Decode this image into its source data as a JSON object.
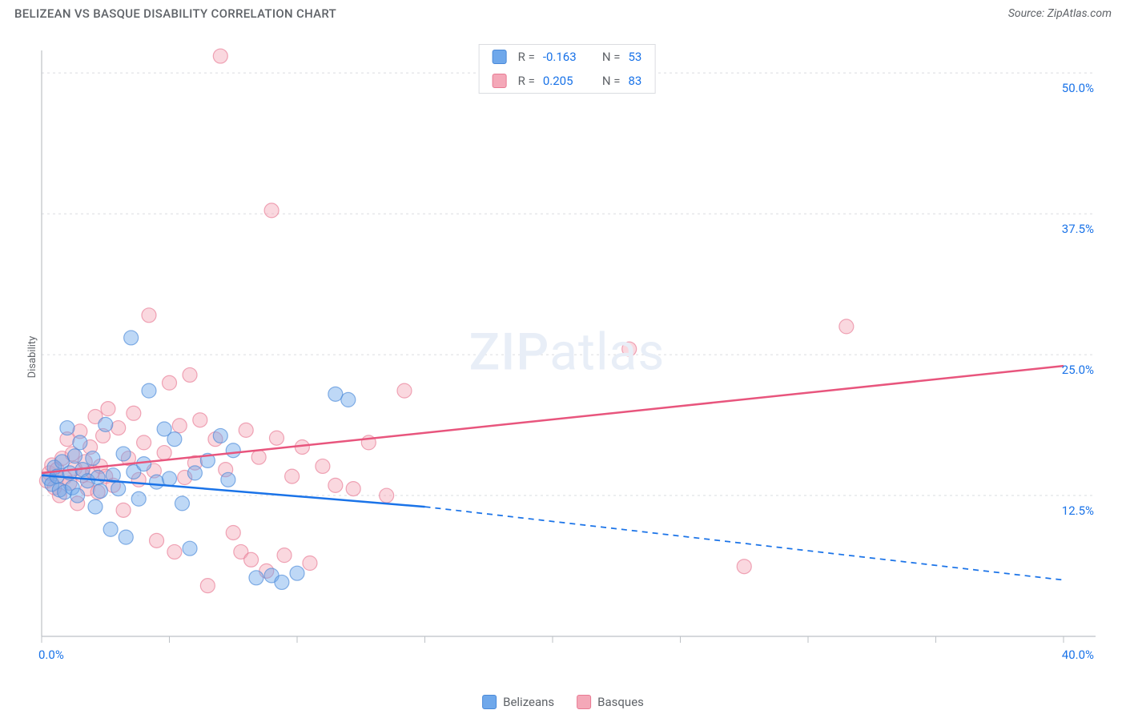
{
  "header": {
    "title": "BELIZEAN VS BASQUE DISABILITY CORRELATION CHART",
    "source": "Source: ZipAtlas.com"
  },
  "watermark": {
    "zip": "ZIP",
    "atlas": "atlas"
  },
  "y_axis_label": "Disability",
  "chart": {
    "type": "scatter",
    "background_color": "#ffffff",
    "grid_color": "#dadce0",
    "axis_color": "#bdc1c6",
    "tick_label_color": "#1a73e8",
    "xlim": [
      0,
      40
    ],
    "ylim": [
      0,
      52
    ],
    "x_ticks": [
      0,
      5,
      10,
      15,
      20,
      25,
      30,
      35,
      40
    ],
    "x_tick_labels": {
      "0": "0.0%",
      "40": "40.0%"
    },
    "y_gridlines": [
      12.5,
      25.0,
      37.5,
      50.0
    ],
    "y_tick_labels": {
      "12.5": "12.5%",
      "25.0": "25.0%",
      "37.5": "37.5%",
      "50.0": "50.0%"
    },
    "marker_radius": 9,
    "marker_opacity": 0.45,
    "series": [
      {
        "name": "Belizeans",
        "color": "#6fa8eb",
        "stroke": "#4a89d8",
        "r_value": "-0.163",
        "n_value": "53",
        "trend": {
          "color": "#1a73e8",
          "width": 2.5,
          "start": [
            0,
            14.3
          ],
          "solid_end": [
            15,
            11.5
          ],
          "dash_end": [
            40,
            5.0
          ]
        },
        "points": [
          [
            0.3,
            14
          ],
          [
            0.4,
            13.5
          ],
          [
            0.5,
            15
          ],
          [
            0.6,
            14.2
          ],
          [
            0.7,
            13
          ],
          [
            0.8,
            15.5
          ],
          [
            0.9,
            12.8
          ],
          [
            1.0,
            18.5
          ],
          [
            1.1,
            14.5
          ],
          [
            1.2,
            13.2
          ],
          [
            1.3,
            16
          ],
          [
            1.4,
            12.5
          ],
          [
            1.5,
            17.2
          ],
          [
            1.6,
            14.8
          ],
          [
            1.8,
            13.8
          ],
          [
            2.0,
            15.8
          ],
          [
            2.1,
            11.5
          ],
          [
            2.2,
            14.1
          ],
          [
            2.3,
            12.9
          ],
          [
            2.5,
            18.8
          ],
          [
            2.7,
            9.5
          ],
          [
            2.8,
            14.3
          ],
          [
            3.0,
            13.1
          ],
          [
            3.2,
            16.2
          ],
          [
            3.3,
            8.8
          ],
          [
            3.5,
            26.5
          ],
          [
            3.6,
            14.6
          ],
          [
            3.8,
            12.2
          ],
          [
            4.0,
            15.3
          ],
          [
            4.2,
            21.8
          ],
          [
            4.5,
            13.7
          ],
          [
            4.8,
            18.4
          ],
          [
            5.0,
            14
          ],
          [
            5.2,
            17.5
          ],
          [
            5.5,
            11.8
          ],
          [
            5.8,
            7.8
          ],
          [
            6.0,
            14.5
          ],
          [
            6.5,
            15.6
          ],
          [
            7.0,
            17.8
          ],
          [
            7.3,
            13.9
          ],
          [
            7.5,
            16.5
          ],
          [
            8.4,
            5.2
          ],
          [
            9.0,
            5.4
          ],
          [
            9.4,
            4.8
          ],
          [
            10.0,
            5.6
          ],
          [
            11.5,
            21.5
          ],
          [
            12.0,
            21.0
          ]
        ]
      },
      {
        "name": "Basques",
        "color": "#f4a8b8",
        "stroke": "#e87a93",
        "r_value": "0.205",
        "n_value": "83",
        "trend": {
          "color": "#e8557d",
          "width": 2.5,
          "start": [
            0,
            14.5
          ],
          "solid_end": [
            40,
            24.0
          ],
          "dash_end": null
        },
        "points": [
          [
            0.2,
            13.8
          ],
          [
            0.3,
            14.5
          ],
          [
            0.4,
            15.2
          ],
          [
            0.5,
            13.2
          ],
          [
            0.6,
            14.8
          ],
          [
            0.7,
            12.5
          ],
          [
            0.8,
            15.8
          ],
          [
            0.9,
            14.1
          ],
          [
            1.0,
            17.5
          ],
          [
            1.1,
            13.6
          ],
          [
            1.2,
            16.2
          ],
          [
            1.3,
            14.9
          ],
          [
            1.4,
            11.8
          ],
          [
            1.5,
            18.2
          ],
          [
            1.6,
            14.3
          ],
          [
            1.7,
            15.5
          ],
          [
            1.8,
            13.1
          ],
          [
            1.9,
            16.8
          ],
          [
            2.0,
            14.6
          ],
          [
            2.1,
            19.5
          ],
          [
            2.2,
            12.8
          ],
          [
            2.3,
            15.1
          ],
          [
            2.4,
            17.8
          ],
          [
            2.5,
            14.2
          ],
          [
            2.6,
            20.2
          ],
          [
            2.8,
            13.4
          ],
          [
            3.0,
            18.5
          ],
          [
            3.2,
            11.2
          ],
          [
            3.4,
            15.8
          ],
          [
            3.6,
            19.8
          ],
          [
            3.8,
            13.9
          ],
          [
            4.0,
            17.2
          ],
          [
            4.2,
            28.5
          ],
          [
            4.4,
            14.7
          ],
          [
            4.5,
            8.5
          ],
          [
            4.8,
            16.3
          ],
          [
            5.0,
            22.5
          ],
          [
            5.2,
            7.5
          ],
          [
            5.4,
            18.7
          ],
          [
            5.6,
            14.1
          ],
          [
            5.8,
            23.2
          ],
          [
            6.0,
            15.4
          ],
          [
            6.2,
            19.2
          ],
          [
            6.5,
            4.5
          ],
          [
            6.8,
            17.5
          ],
          [
            7.0,
            51.5
          ],
          [
            7.2,
            14.8
          ],
          [
            7.5,
            9.2
          ],
          [
            7.8,
            7.5
          ],
          [
            8.0,
            18.3
          ],
          [
            8.2,
            6.8
          ],
          [
            8.5,
            15.9
          ],
          [
            8.8,
            5.8
          ],
          [
            9.0,
            37.8
          ],
          [
            9.2,
            17.6
          ],
          [
            9.5,
            7.2
          ],
          [
            9.8,
            14.2
          ],
          [
            10.2,
            16.8
          ],
          [
            10.5,
            6.5
          ],
          [
            11.0,
            15.1
          ],
          [
            11.5,
            13.4
          ],
          [
            12.2,
            13.1
          ],
          [
            12.8,
            17.2
          ],
          [
            13.5,
            12.5
          ],
          [
            14.2,
            21.8
          ],
          [
            23.0,
            25.5
          ],
          [
            27.5,
            6.2
          ],
          [
            31.5,
            27.5
          ]
        ]
      }
    ]
  },
  "legend_top": {
    "r_label": "R =",
    "n_label": "N ="
  },
  "legend_bottom": {
    "items": [
      "Belizeans",
      "Basques"
    ]
  }
}
